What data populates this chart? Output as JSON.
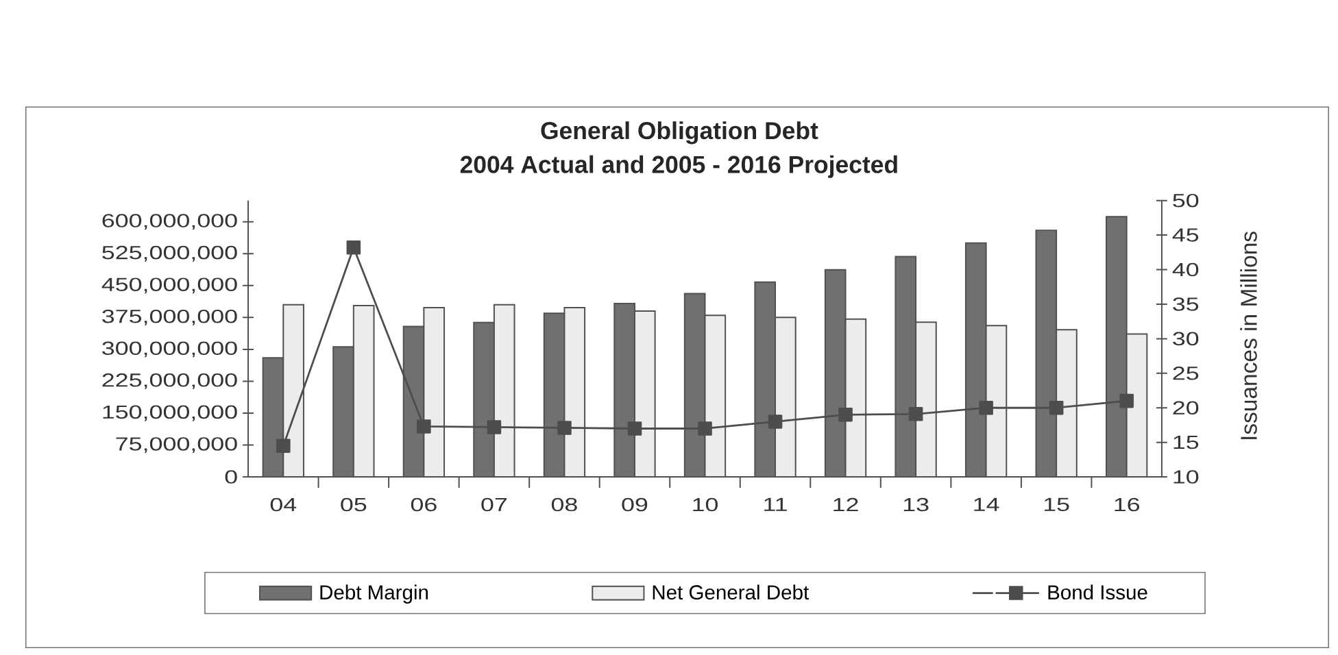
{
  "chart_data": {
    "type": "bar",
    "title": "General Obligation Debt",
    "subtitle": "2004 Actual and 2005 - 2016 Projected",
    "categories": [
      "04",
      "05",
      "06",
      "07",
      "08",
      "09",
      "10",
      "11",
      "12",
      "13",
      "14",
      "15",
      "16"
    ],
    "series": [
      {
        "name": "Debt Margin",
        "color": "#707070",
        "values": [
          280000000,
          306000000,
          354000000,
          363000000,
          385000000,
          408000000,
          431000000,
          458000000,
          487000000,
          518000000,
          550000000,
          580000000,
          612000000
        ]
      },
      {
        "name": "Net General Debt",
        "color": "#ececec",
        "values": [
          405000000,
          403000000,
          398000000,
          405000000,
          398000000,
          390000000,
          380000000,
          375000000,
          371000000,
          364000000,
          356000000,
          346000000,
          336000000
        ]
      },
      {
        "name": "Bond Issue",
        "type": "line",
        "axis": "y2",
        "color": "#4d4d4d",
        "values": [
          14.5,
          43.2,
          17.3,
          17.2,
          17.1,
          17.0,
          17.0,
          18.0,
          19.0,
          19.1,
          20.0,
          20.0,
          21.0
        ]
      }
    ],
    "ylim": [
      0,
      650000000
    ],
    "yticks": [
      0,
      {
        "value": 75000000,
        "label": "75,000,000"
      },
      {
        "value": 150000000,
        "label": "150,000,000"
      },
      {
        "value": 225000000,
        "label": "225,000,000"
      },
      {
        "value": 300000000,
        "label": "300,000,000"
      },
      {
        "value": 375000000,
        "label": "375,000,000"
      },
      {
        "value": 450000000,
        "label": "450,000,000"
      },
      {
        "value": 525000000,
        "label": "525,000,000"
      },
      {
        "value": 600000000,
        "label": "600,000,000"
      }
    ],
    "y2lim": [
      10,
      50
    ],
    "y2ticks": [
      10,
      15,
      20,
      25,
      30,
      35,
      40,
      45,
      50
    ],
    "y2label": "Issuances in Millions",
    "legend": "bottom",
    "marker": "square"
  }
}
